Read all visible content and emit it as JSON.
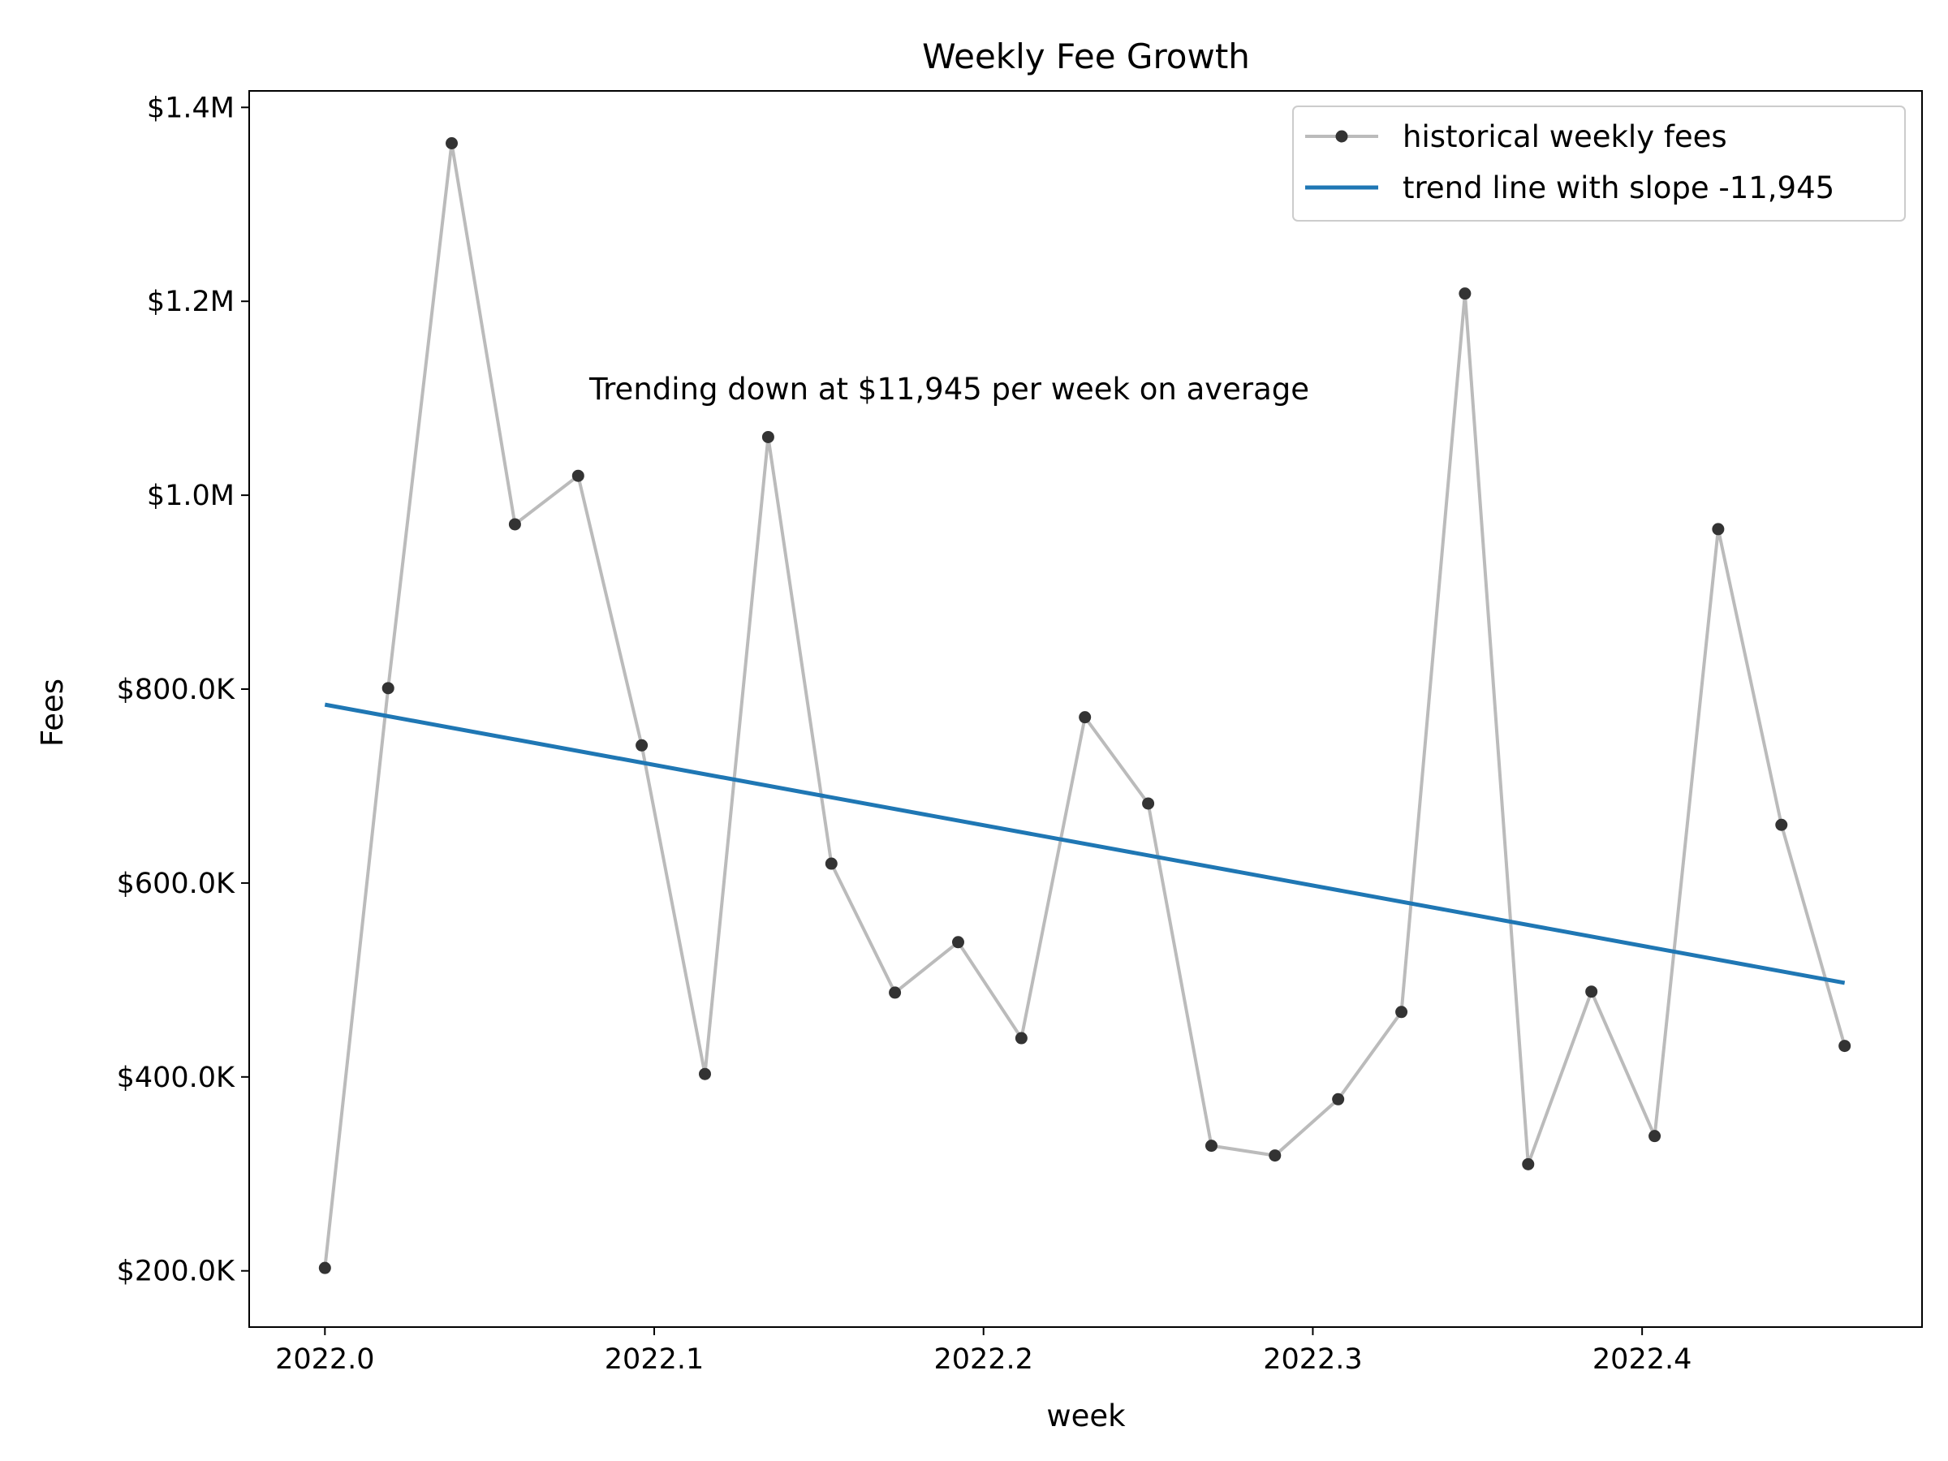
{
  "chart_data": {
    "type": "line",
    "title": "Weekly Fee Growth",
    "xlabel": "week",
    "ylabel": "Fees",
    "annotation": "Trending down at $11,945 per week on average",
    "xlim": [
      2021.977,
      2022.485
    ],
    "ylim": [
      142000,
      1417000
    ],
    "x_ticks": [
      2022.0,
      2022.1,
      2022.2,
      2022.3,
      2022.4
    ],
    "x_tick_labels": [
      "2022.0",
      "2022.1",
      "2022.2",
      "2022.3",
      "2022.4"
    ],
    "y_ticks": [
      200000,
      400000,
      600000,
      800000,
      1000000,
      1200000,
      1400000
    ],
    "y_tick_labels": [
      "$200.0K",
      "$400.0K",
      "$600.0K",
      "$800.0K",
      "$1.0M",
      "$1.2M",
      "$1.4M"
    ],
    "grid": false,
    "legend_position": "top-right",
    "series": [
      {
        "name": "historical weekly fees",
        "color": "#bbbbbb",
        "marker_color": "#333333",
        "x": [
          2022.0,
          2022.0192,
          2022.0385,
          2022.0577,
          2022.0769,
          2022.0962,
          2022.1154,
          2022.1346,
          2022.1538,
          2022.1731,
          2022.1923,
          2022.2115,
          2022.2308,
          2022.25,
          2022.2692,
          2022.2885,
          2022.3077,
          2022.3269,
          2022.3462,
          2022.3654,
          2022.3846,
          2022.4038,
          2022.4231,
          2022.4423,
          2022.4615
        ],
        "y": [
          203000,
          801000,
          1363000,
          970000,
          1020000,
          742000,
          403000,
          1060000,
          620000,
          487000,
          539000,
          440000,
          771000,
          682000,
          329000,
          319000,
          377000,
          467000,
          1208000,
          310000,
          488000,
          339000,
          965000,
          660000,
          432000
        ]
      },
      {
        "name": "trend line with slope -11,945",
        "color": "#1f77b4",
        "x": [
          2022.0,
          2022.4615
        ],
        "y": [
          784000,
          497000
        ]
      }
    ]
  }
}
